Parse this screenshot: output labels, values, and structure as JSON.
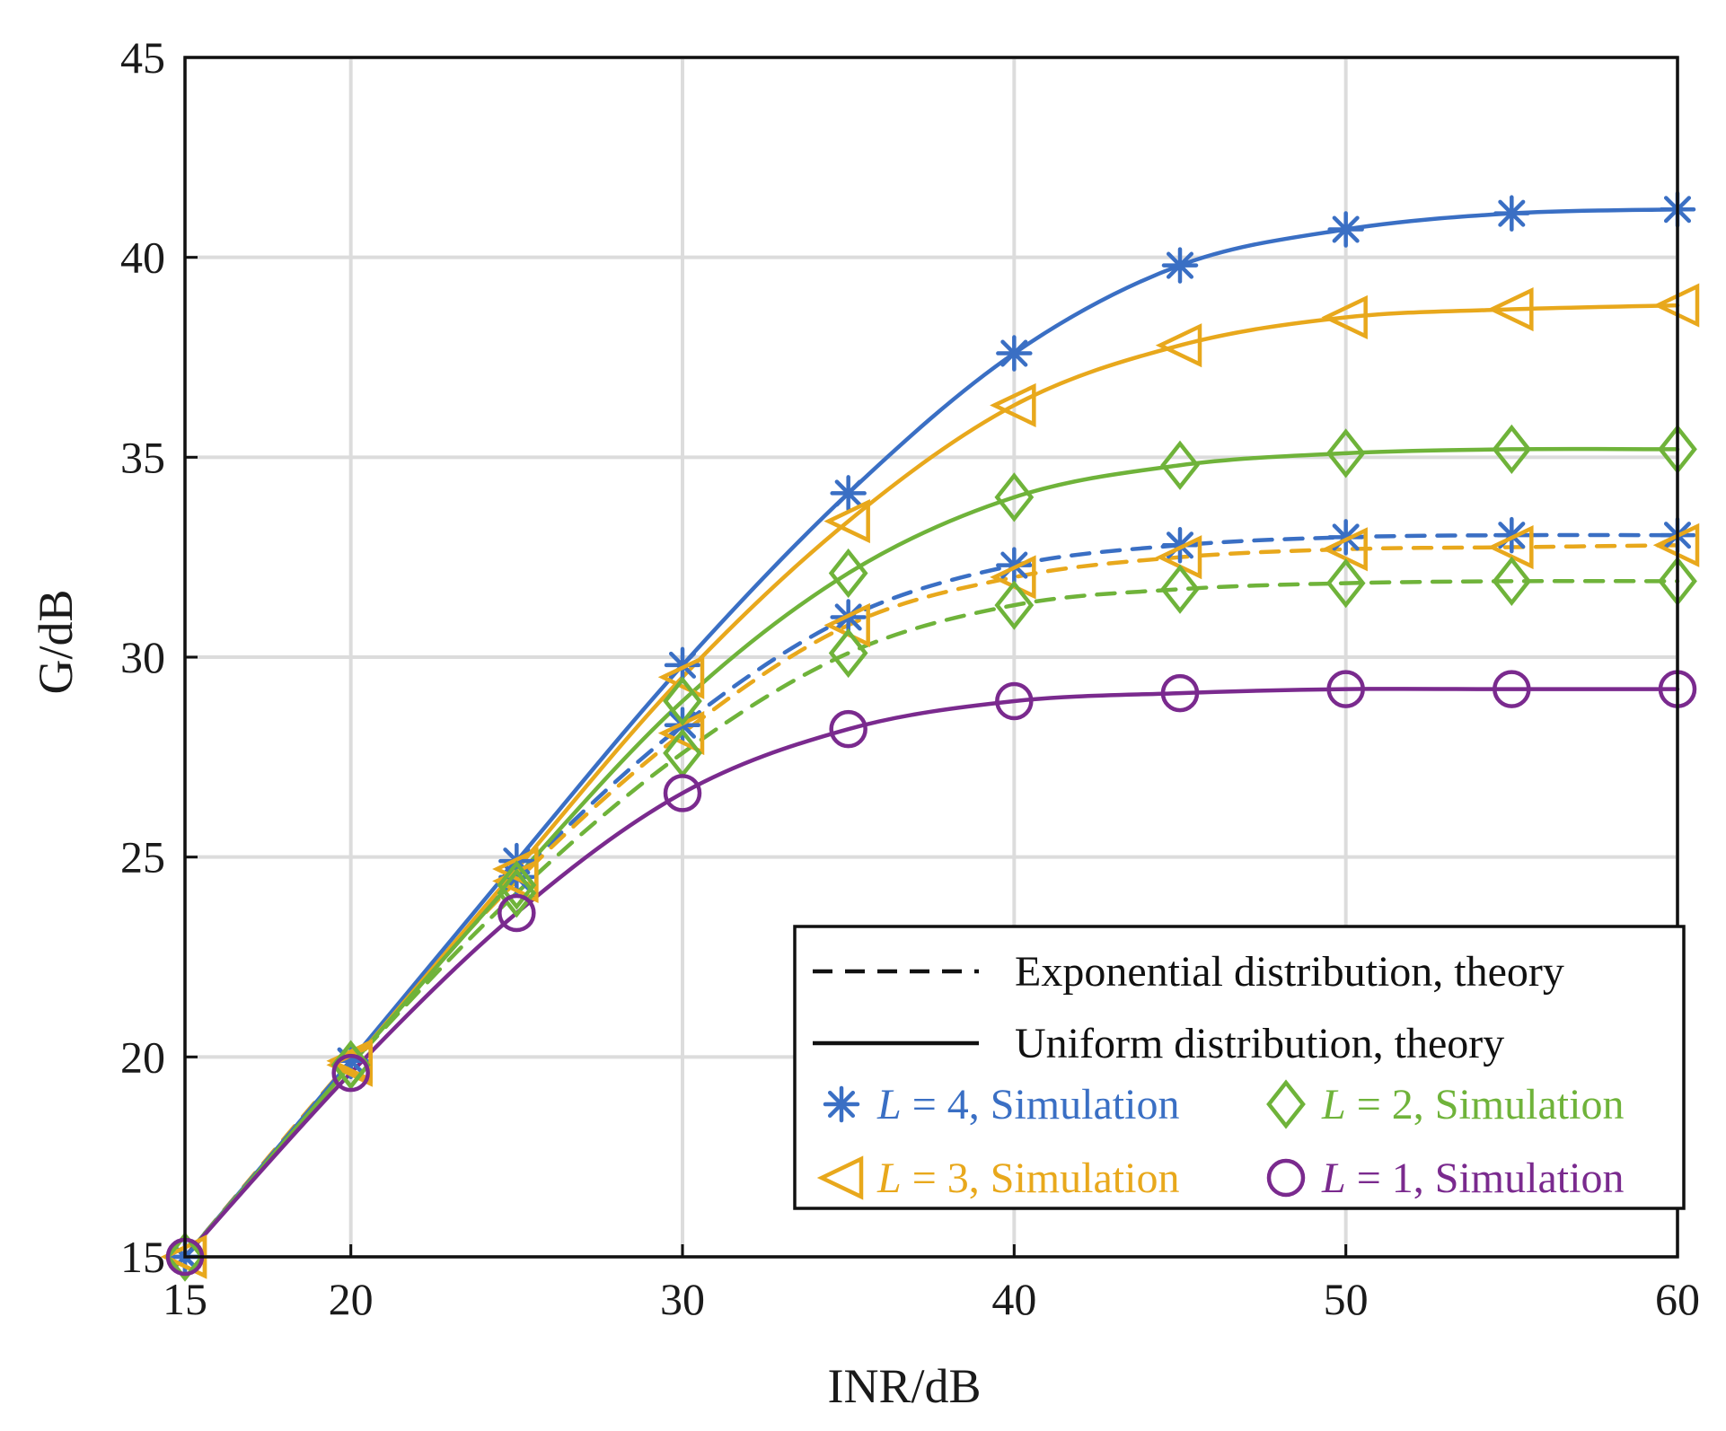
{
  "chart_data": {
    "type": "line",
    "title": "",
    "xlabel": "INR/dB",
    "ylabel": "G/dB",
    "xlim": [
      15,
      60
    ],
    "ylim": [
      15,
      45
    ],
    "xticks": [
      15,
      20,
      30,
      40,
      50,
      60
    ],
    "yticks": [
      15,
      20,
      25,
      30,
      35,
      40,
      45
    ],
    "grid": true,
    "legend_position": "bottom-right",
    "colors": {
      "L4": "#3a6fc4",
      "L3": "#e8a81c",
      "L2": "#6fb33a",
      "L1": "#7a2a8e",
      "axis": "#111111",
      "grid": "#dcdcdc"
    },
    "x": [
      15,
      20,
      25,
      30,
      35,
      40,
      45,
      50,
      55,
      60
    ],
    "series": [
      {
        "name": "L=4, Uniform distribution, theory",
        "group": "L4",
        "style": "solid",
        "values": [
          15.0,
          19.9,
          24.9,
          29.8,
          34.1,
          37.6,
          39.8,
          40.7,
          41.1,
          41.2
        ]
      },
      {
        "name": "L=3, Uniform distribution, theory",
        "group": "L3",
        "style": "solid",
        "values": [
          15.0,
          19.8,
          24.7,
          29.5,
          33.4,
          36.3,
          37.8,
          38.5,
          38.7,
          38.8
        ]
      },
      {
        "name": "L=2, Uniform distribution, theory",
        "group": "L2",
        "style": "solid",
        "values": [
          15.0,
          19.8,
          24.5,
          28.9,
          32.1,
          34.0,
          34.8,
          35.1,
          35.2,
          35.2
        ]
      },
      {
        "name": "L=1, Uniform distribution, theory",
        "group": "L1",
        "style": "solid",
        "values": [
          15.0,
          19.6,
          23.6,
          26.6,
          28.2,
          28.9,
          29.1,
          29.2,
          29.2,
          29.2
        ]
      },
      {
        "name": "L=4, Exponential distribution, theory",
        "group": "L4",
        "style": "dashed",
        "values": [
          15.0,
          19.9,
          24.5,
          28.3,
          31.0,
          32.3,
          32.8,
          33.0,
          33.05,
          33.05
        ]
      },
      {
        "name": "L=3, Exponential distribution, theory",
        "group": "L3",
        "style": "dashed",
        "values": [
          15.0,
          19.9,
          24.4,
          28.1,
          30.8,
          32.0,
          32.5,
          32.7,
          32.75,
          32.8
        ]
      },
      {
        "name": "L=2, Exponential distribution, theory",
        "group": "L2",
        "style": "dashed",
        "values": [
          15.0,
          19.8,
          24.1,
          27.6,
          30.1,
          31.3,
          31.7,
          31.85,
          31.9,
          31.9
        ]
      },
      {
        "name": "L=4, Simulation",
        "group": "L4",
        "style": "marker",
        "marker": "asterisk",
        "values": [
          15.0,
          19.9,
          24.9,
          29.8,
          34.1,
          37.6,
          39.8,
          40.7,
          41.1,
          41.2
        ],
        "values_exp": [
          15.0,
          19.9,
          24.5,
          28.3,
          31.0,
          32.3,
          32.8,
          33.0,
          33.05,
          33.05
        ]
      },
      {
        "name": "L=3, Simulation",
        "group": "L3",
        "style": "marker",
        "marker": "triangle-left",
        "values": [
          15.0,
          19.8,
          24.7,
          29.5,
          33.4,
          36.3,
          37.8,
          38.5,
          38.7,
          38.8
        ],
        "values_exp": [
          15.0,
          19.9,
          24.4,
          28.1,
          30.8,
          32.0,
          32.5,
          32.7,
          32.75,
          32.8
        ]
      },
      {
        "name": "L=2, Simulation",
        "group": "L2",
        "style": "marker",
        "marker": "diamond",
        "values": [
          15.0,
          19.8,
          24.3,
          28.9,
          32.1,
          34.0,
          34.8,
          35.1,
          35.2,
          35.2
        ],
        "values_exp": [
          15.0,
          19.8,
          24.1,
          27.6,
          30.1,
          31.3,
          31.7,
          31.85,
          31.9,
          31.9
        ]
      },
      {
        "name": "L=1, Simulation",
        "group": "L1",
        "style": "marker",
        "marker": "circle",
        "values": [
          15.0,
          19.6,
          23.6,
          26.6,
          28.2,
          28.9,
          29.1,
          29.2,
          29.2,
          29.2
        ]
      }
    ],
    "legend": {
      "dashed_label": "Exponential distribution, theory",
      "solid_label": "Uniform distribution, theory",
      "entries": [
        {
          "var": "L",
          "eq": " = 4, Simulation",
          "group": "L4",
          "marker": "asterisk"
        },
        {
          "var": "L",
          "eq": " = 2, Simulation",
          "group": "L2",
          "marker": "diamond"
        },
        {
          "var": "L",
          "eq": " = 3, Simulation",
          "group": "L3",
          "marker": "triangle-left"
        },
        {
          "var": "L",
          "eq": " = 1, Simulation",
          "group": "L1",
          "marker": "circle"
        }
      ]
    }
  }
}
